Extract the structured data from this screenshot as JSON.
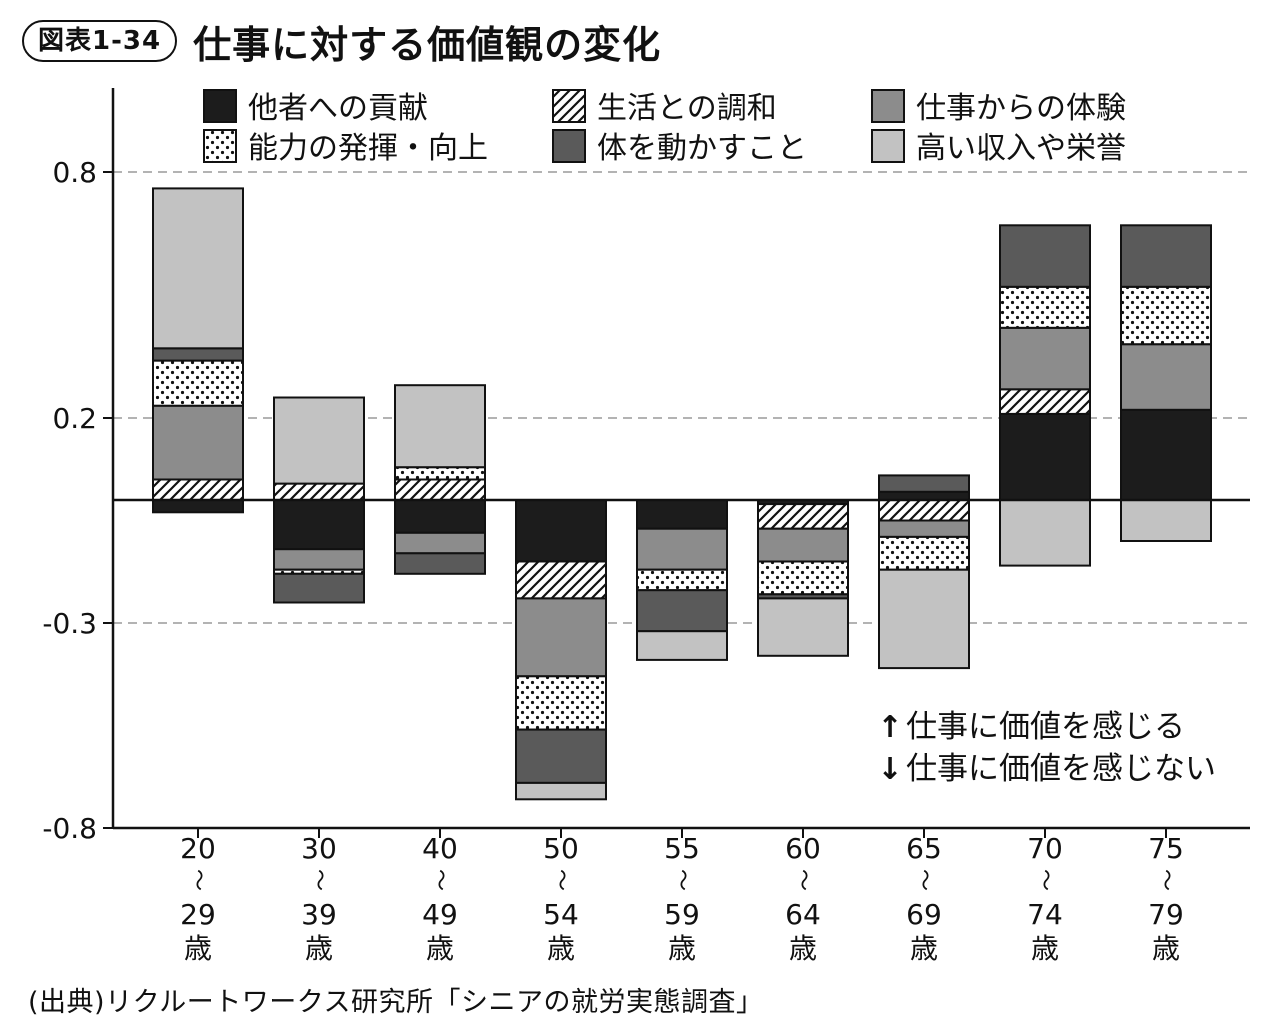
{
  "figure_label": "図表1-34",
  "chart_data": {
    "type": "bar",
    "stacked": "diverging",
    "title": "仕事に対する価値観の変化",
    "xlabel": "",
    "ylabel": "",
    "ylim": [
      -0.8,
      1.0
    ],
    "yticks": [
      0.8,
      0.2,
      -0.3,
      -0.8
    ],
    "ytick_labels": [
      "0.8",
      "0.2",
      "-0.3",
      "-0.8"
    ],
    "grid": "dashed at y ticks",
    "zero_line": true,
    "legend_position": "top",
    "categories": [
      {
        "start": "20",
        "tilde": "〜",
        "end": "29",
        "unit": "歳"
      },
      {
        "start": "30",
        "tilde": "〜",
        "end": "39",
        "unit": "歳"
      },
      {
        "start": "40",
        "tilde": "〜",
        "end": "49",
        "unit": "歳"
      },
      {
        "start": "50",
        "tilde": "〜",
        "end": "54",
        "unit": "歳"
      },
      {
        "start": "55",
        "tilde": "〜",
        "end": "59",
        "unit": "歳"
      },
      {
        "start": "60",
        "tilde": "〜",
        "end": "64",
        "unit": "歳"
      },
      {
        "start": "65",
        "tilde": "〜",
        "end": "69",
        "unit": "歳"
      },
      {
        "start": "70",
        "tilde": "〜",
        "end": "74",
        "unit": "歳"
      },
      {
        "start": "75",
        "tilde": "〜",
        "end": "79",
        "unit": "歳"
      }
    ],
    "series": [
      {
        "key": "contribution",
        "name": "他者への貢献",
        "pattern": "solid",
        "color": "#1c1c1c",
        "values": [
          -0.03,
          -0.12,
          -0.08,
          -0.15,
          -0.07,
          -0.01,
          0.02,
          0.21,
          0.22
        ]
      },
      {
        "key": "harmony",
        "name": "生活との調和",
        "pattern": "hatch",
        "color": "#ffffff",
        "values": [
          0.05,
          0.04,
          0.05,
          -0.09,
          0.0,
          -0.06,
          -0.05,
          0.06,
          0.0
        ]
      },
      {
        "key": "experience",
        "name": "仕事からの体験",
        "pattern": "solid",
        "color": "#8c8c8c",
        "values": [
          0.18,
          -0.05,
          -0.05,
          -0.19,
          -0.1,
          -0.08,
          -0.04,
          0.15,
          0.16
        ]
      },
      {
        "key": "ability",
        "name": "能力の発揮・向上",
        "pattern": "dots",
        "color": "#ffffff",
        "values": [
          0.11,
          -0.01,
          0.03,
          -0.13,
          -0.05,
          -0.08,
          -0.08,
          0.1,
          0.14
        ]
      },
      {
        "key": "physical",
        "name": "体を動かすこと",
        "pattern": "solid",
        "color": "#5a5a5a",
        "values": [
          0.03,
          -0.07,
          -0.05,
          -0.13,
          -0.1,
          -0.01,
          0.04,
          0.15,
          0.15
        ]
      },
      {
        "key": "income",
        "name": "高い収入や栄誉",
        "pattern": "solid",
        "color": "#c2c2c2",
        "values": [
          0.39,
          0.21,
          0.2,
          -0.04,
          -0.07,
          -0.14,
          -0.24,
          -0.16,
          -0.1
        ]
      }
    ],
    "annotations": [
      {
        "arrow": "↑",
        "text": "仕事に価値を感じる"
      },
      {
        "arrow": "↓",
        "text": "仕事に価値を感じない"
      }
    ]
  },
  "source": "(出典)リクルートワークス研究所「シニアの就労実態調査」"
}
